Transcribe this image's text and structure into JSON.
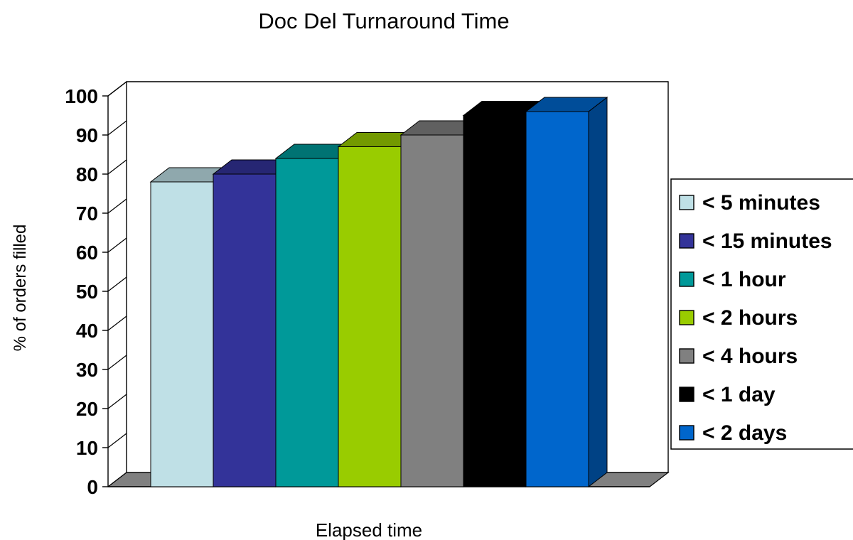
{
  "chart_data": {
    "type": "bar",
    "title": "Doc Del Turnaround Time",
    "xlabel": "Elapsed time",
    "ylabel": "% of orders filled",
    "ylim": [
      0,
      100
    ],
    "yticks": [
      0,
      10,
      20,
      30,
      40,
      50,
      60,
      70,
      80,
      90,
      100
    ],
    "grid": true,
    "three_d": true,
    "legend_position": "right",
    "series": [
      {
        "name": "< 5 minutes",
        "value": 78,
        "color": "#bfe0e6"
      },
      {
        "name": "< 15 minutes",
        "value": 80,
        "color": "#333399"
      },
      {
        "name": "< 1 hour",
        "value": 84,
        "color": "#009999"
      },
      {
        "name": "< 2 hours",
        "value": 87,
        "color": "#99cc00"
      },
      {
        "name": "< 4 hours",
        "value": 90,
        "color": "#808080"
      },
      {
        "name": "< 1 day",
        "value": 95,
        "color": "#000000"
      },
      {
        "name": "< 2 days",
        "value": 96,
        "color": "#0066cc"
      }
    ]
  }
}
